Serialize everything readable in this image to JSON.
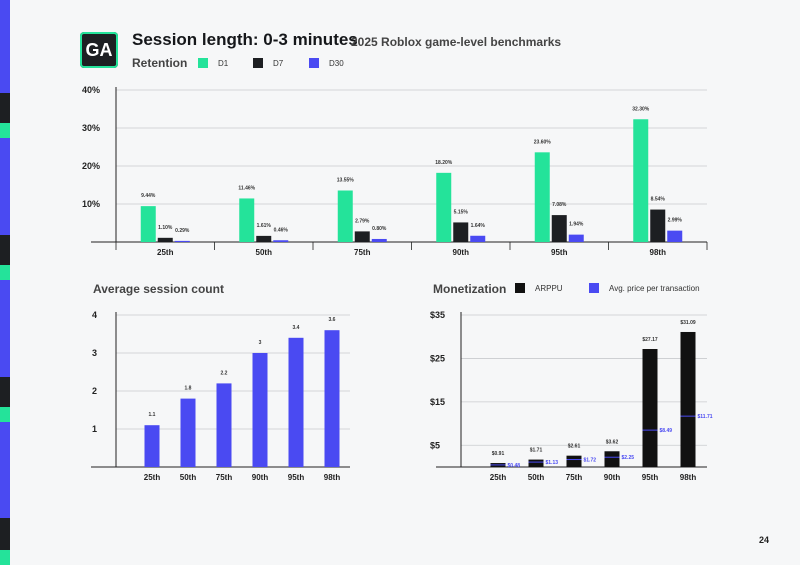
{
  "header": {
    "logo_text": "GA",
    "title": "Session length: 0-3 minutes",
    "subtitle": "2025 Roblox game-level benchmarks",
    "page_number": "24"
  },
  "colors": {
    "d1": "#24e39a",
    "d7": "#1d1f22",
    "d30": "#4a4af2",
    "arppu": "#111111",
    "avg_price": "#4a4af2",
    "strip": [
      "#4a4af2",
      "#24e39a",
      "#1d1f22"
    ]
  },
  "sections": {
    "retention": "Retention",
    "session_count": "Average session count",
    "monetization": "Monetization"
  },
  "chart_data": [
    {
      "id": "retention",
      "type": "bar",
      "categories": [
        "25th",
        "50th",
        "75th",
        "90th",
        "95th",
        "98th"
      ],
      "ylim": [
        0,
        40
      ],
      "yticks": [
        "10%",
        "20%",
        "30%",
        "40%"
      ],
      "ytick_values": [
        10,
        20,
        30,
        40
      ],
      "series": [
        {
          "name": "D1",
          "values": [
            9.44,
            11.46,
            13.55,
            18.2,
            23.6,
            32.3
          ],
          "labels": [
            "9.44%",
            "11.46%",
            "13.55%",
            "18.20%",
            "23.60%",
            "32.30%"
          ]
        },
        {
          "name": "D7",
          "values": [
            1.1,
            1.61,
            2.79,
            5.15,
            7.08,
            8.54
          ],
          "labels": [
            "1.10%",
            "1.61%",
            "2.79%",
            "5.15%",
            "7.08%",
            "8.54%"
          ]
        },
        {
          "name": "D30",
          "values": [
            0.29,
            0.46,
            0.8,
            1.64,
            1.94,
            2.99
          ],
          "labels": [
            "0.29%",
            "0.46%",
            "0.80%",
            "1.64%",
            "1.94%",
            "2.99%"
          ]
        }
      ],
      "grid": true,
      "legend": "top-left"
    },
    {
      "id": "session_count",
      "type": "bar",
      "categories": [
        "25th",
        "50th",
        "75th",
        "90th",
        "95th",
        "98th"
      ],
      "ylim": [
        0,
        4
      ],
      "yticks": [
        "1",
        "2",
        "3",
        "4"
      ],
      "ytick_values": [
        1,
        2,
        3,
        4
      ],
      "values": [
        1.1,
        1.8,
        2.2,
        3,
        3.4,
        3.6
      ],
      "labels": [
        "1.1",
        "1.8",
        "2.2",
        "3",
        "3.4",
        "3.6"
      ],
      "grid": true
    },
    {
      "id": "monetization",
      "type": "bar",
      "categories": [
        "25th",
        "50th",
        "75th",
        "90th",
        "95th",
        "98th"
      ],
      "ylim": [
        0,
        35
      ],
      "yticks": [
        "$5",
        "$15",
        "$25",
        "$35"
      ],
      "ytick_values": [
        5,
        15,
        25,
        35
      ],
      "series": [
        {
          "name": "ARPPU",
          "values": [
            0.91,
            1.71,
            2.61,
            3.62,
            27.17,
            31.09
          ],
          "labels": [
            "$0.91",
            "$1.71",
            "$2.61",
            "$3.62",
            "$27.17",
            "$31.09"
          ]
        },
        {
          "name": "Avg. price per transaction",
          "values": [
            0.48,
            1.13,
            1.72,
            2.25,
            8.49,
            11.71
          ],
          "labels": [
            "$0.48",
            "$1.13",
            "$1.72",
            "$2.25",
            "$8.49",
            "$11.71"
          ]
        }
      ],
      "grid": true,
      "legend": "top-right"
    }
  ]
}
